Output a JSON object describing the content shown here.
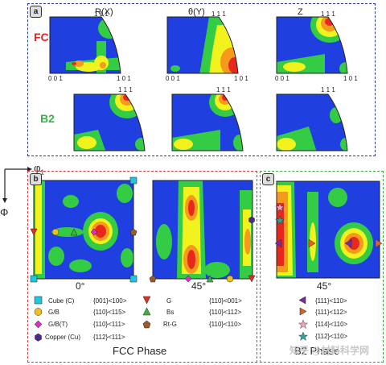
{
  "panel_a": {
    "tag": "a",
    "columns": [
      "R(X)",
      "θ(Y)",
      "Z"
    ],
    "rows": [
      {
        "label": "FCC",
        "color": "#e8242a"
      },
      {
        "label": "B2",
        "color": "#35b34a"
      }
    ],
    "corners": {
      "top": "1 1 1",
      "left": "0 0 1",
      "right": "1 0 1"
    }
  },
  "axes": {
    "phi1": "φ",
    "phi1_sub": "1",
    "Phi": "Φ"
  },
  "panel_b": {
    "tag": "b",
    "angles": [
      "0°",
      "45°"
    ],
    "phase_label": "FCC Phase"
  },
  "panel_c": {
    "tag": "c",
    "angle": "45°",
    "phase_label": "B2 Phase"
  },
  "legend_fcc": [
    {
      "name": "Cube (C)",
      "index": "{001}<100>",
      "symbol": "square",
      "color": "#22c4e0"
    },
    {
      "name": "G/B",
      "index": "{110}<115>",
      "symbol": "circle",
      "color": "#f0c020"
    },
    {
      "name": "G/B(T)",
      "index": "{110}<111>",
      "symbol": "diamond",
      "color": "#e02cc8"
    },
    {
      "name": "Copper (Cu)",
      "index": "{112}<111>",
      "symbol": "hexagon",
      "color": "#4a2a8a"
    },
    {
      "name": "G",
      "index": "{110}<001>",
      "symbol": "triangle-down",
      "color": "#e0301c"
    },
    {
      "name": "Bs",
      "index": "{110}<112>",
      "symbol": "triangle-up",
      "color": "#40b040"
    },
    {
      "name": "Rt-G",
      "index": "{110}<110>",
      "symbol": "pentagon",
      "color": "#9a5a2a"
    }
  ],
  "legend_b2": [
    {
      "index": "{111}<110>",
      "symbol": "triangle-left",
      "color": "#7a2a9a"
    },
    {
      "index": "{111}<112>",
      "symbol": "triangle-right",
      "color": "#e06020"
    },
    {
      "index": "{114}<110>",
      "symbol": "star",
      "color": "#f0a0c0"
    },
    {
      "index": "{112}<110>",
      "symbol": "star",
      "color": "#30a0a0"
    }
  ],
  "watermark": "知乎 @材料科学网",
  "colors": {
    "blue": "#1f3fe0",
    "green": "#33cc44",
    "yellow": "#f2f21c",
    "orange": "#f59a1c",
    "red": "#e8281c"
  }
}
